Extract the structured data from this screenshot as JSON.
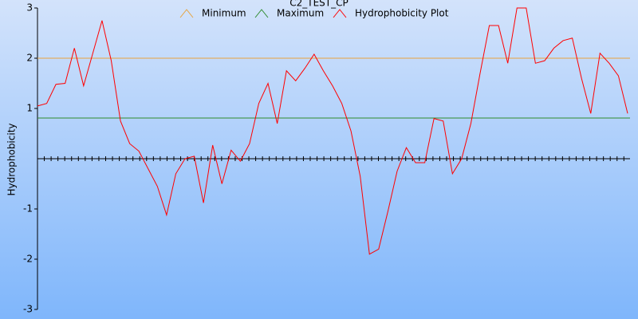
{
  "chart_data": {
    "type": "line",
    "title": "C2_TEST_CP",
    "y_label": "Hydrophobicity",
    "series": [
      {
        "name": "Minimum",
        "color": "#e8a33c",
        "value": 2
      },
      {
        "name": "Maximum",
        "color": "#2e8b2e",
        "value": 0.81
      },
      {
        "name": "Hydrophobicity Plot",
        "color": "#ff0000",
        "values": [
          1.05,
          1.1,
          1.48,
          1.5,
          2.2,
          1.45,
          2.1,
          2.75,
          1.95,
          0.75,
          0.3,
          0.15,
          -0.2,
          -0.55,
          -1.12,
          -0.3,
          0.0,
          0.05,
          -0.88,
          0.27,
          -0.5,
          0.17,
          -0.05,
          0.3,
          1.1,
          1.5,
          0.7,
          1.75,
          1.55,
          1.8,
          2.08,
          1.75,
          1.45,
          1.1,
          0.55,
          -0.35,
          -1.9,
          -1.8,
          -1.05,
          -0.25,
          0.22,
          -0.08,
          -0.08,
          0.8,
          0.75,
          -0.3,
          0.0,
          0.7,
          1.7,
          2.65,
          2.65,
          1.9,
          3.0,
          3.0,
          1.9,
          1.95,
          2.2,
          2.35,
          2.4,
          1.6,
          0.9,
          2.1,
          1.9,
          1.65,
          0.9
        ]
      }
    ],
    "ylim": [
      -3,
      3
    ],
    "yticks": [
      3,
      2,
      1,
      -1,
      -2,
      -3
    ]
  }
}
